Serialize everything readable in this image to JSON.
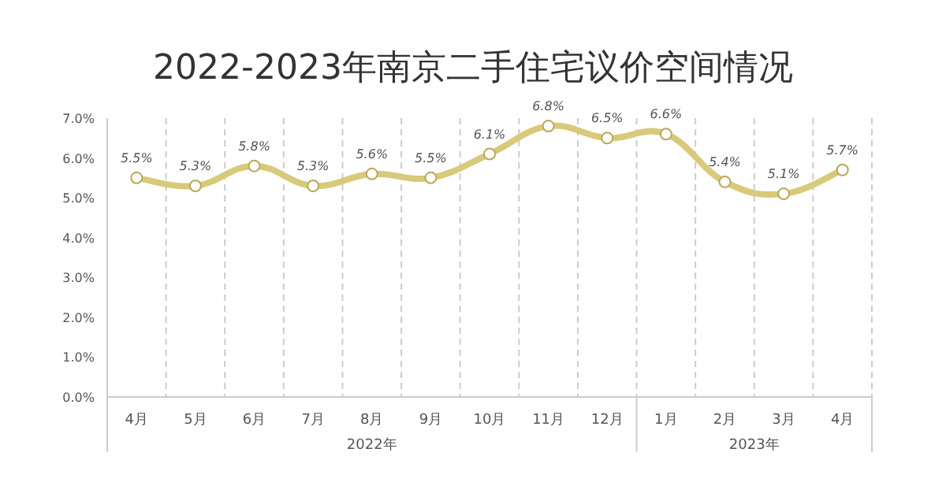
{
  "chart_data": {
    "type": "line",
    "title": "2022-2023年南京二手住宅议价空间情况",
    "categories": [
      "4月",
      "5月",
      "6月",
      "7月",
      "8月",
      "9月",
      "10月",
      "11月",
      "12月",
      "1月",
      "2月",
      "3月",
      "4月"
    ],
    "series": [
      {
        "color": "#d9c97a",
        "values": [
          5.5,
          5.3,
          5.8,
          5.3,
          5.6,
          5.5,
          6.1,
          6.8,
          6.5,
          6.6,
          5.4,
          5.1,
          5.7
        ],
        "value_labels": [
          "5.5%",
          "5.3%",
          "5.8%",
          "5.3%",
          "5.6%",
          "5.5%",
          "6.1%",
          "6.8%",
          "6.5%",
          "6.6%",
          "5.4%",
          "5.1%",
          "5.7%"
        ]
      }
    ],
    "ylim": [
      0,
      7
    ],
    "yticks": [
      {
        "value": 0,
        "label": "0.0%"
      },
      {
        "value": 1,
        "label": "1.0%"
      },
      {
        "value": 2,
        "label": "2.0%"
      },
      {
        "value": 3,
        "label": "3.0%"
      },
      {
        "value": 4,
        "label": "4.0%"
      },
      {
        "value": 5,
        "label": "5.0%"
      },
      {
        "value": 6,
        "label": "6.0%"
      },
      {
        "value": 7,
        "label": "7.0%"
      }
    ],
    "grid": "x",
    "marker": "circle",
    "annotations": [
      "2022年",
      "2023年"
    ]
  }
}
